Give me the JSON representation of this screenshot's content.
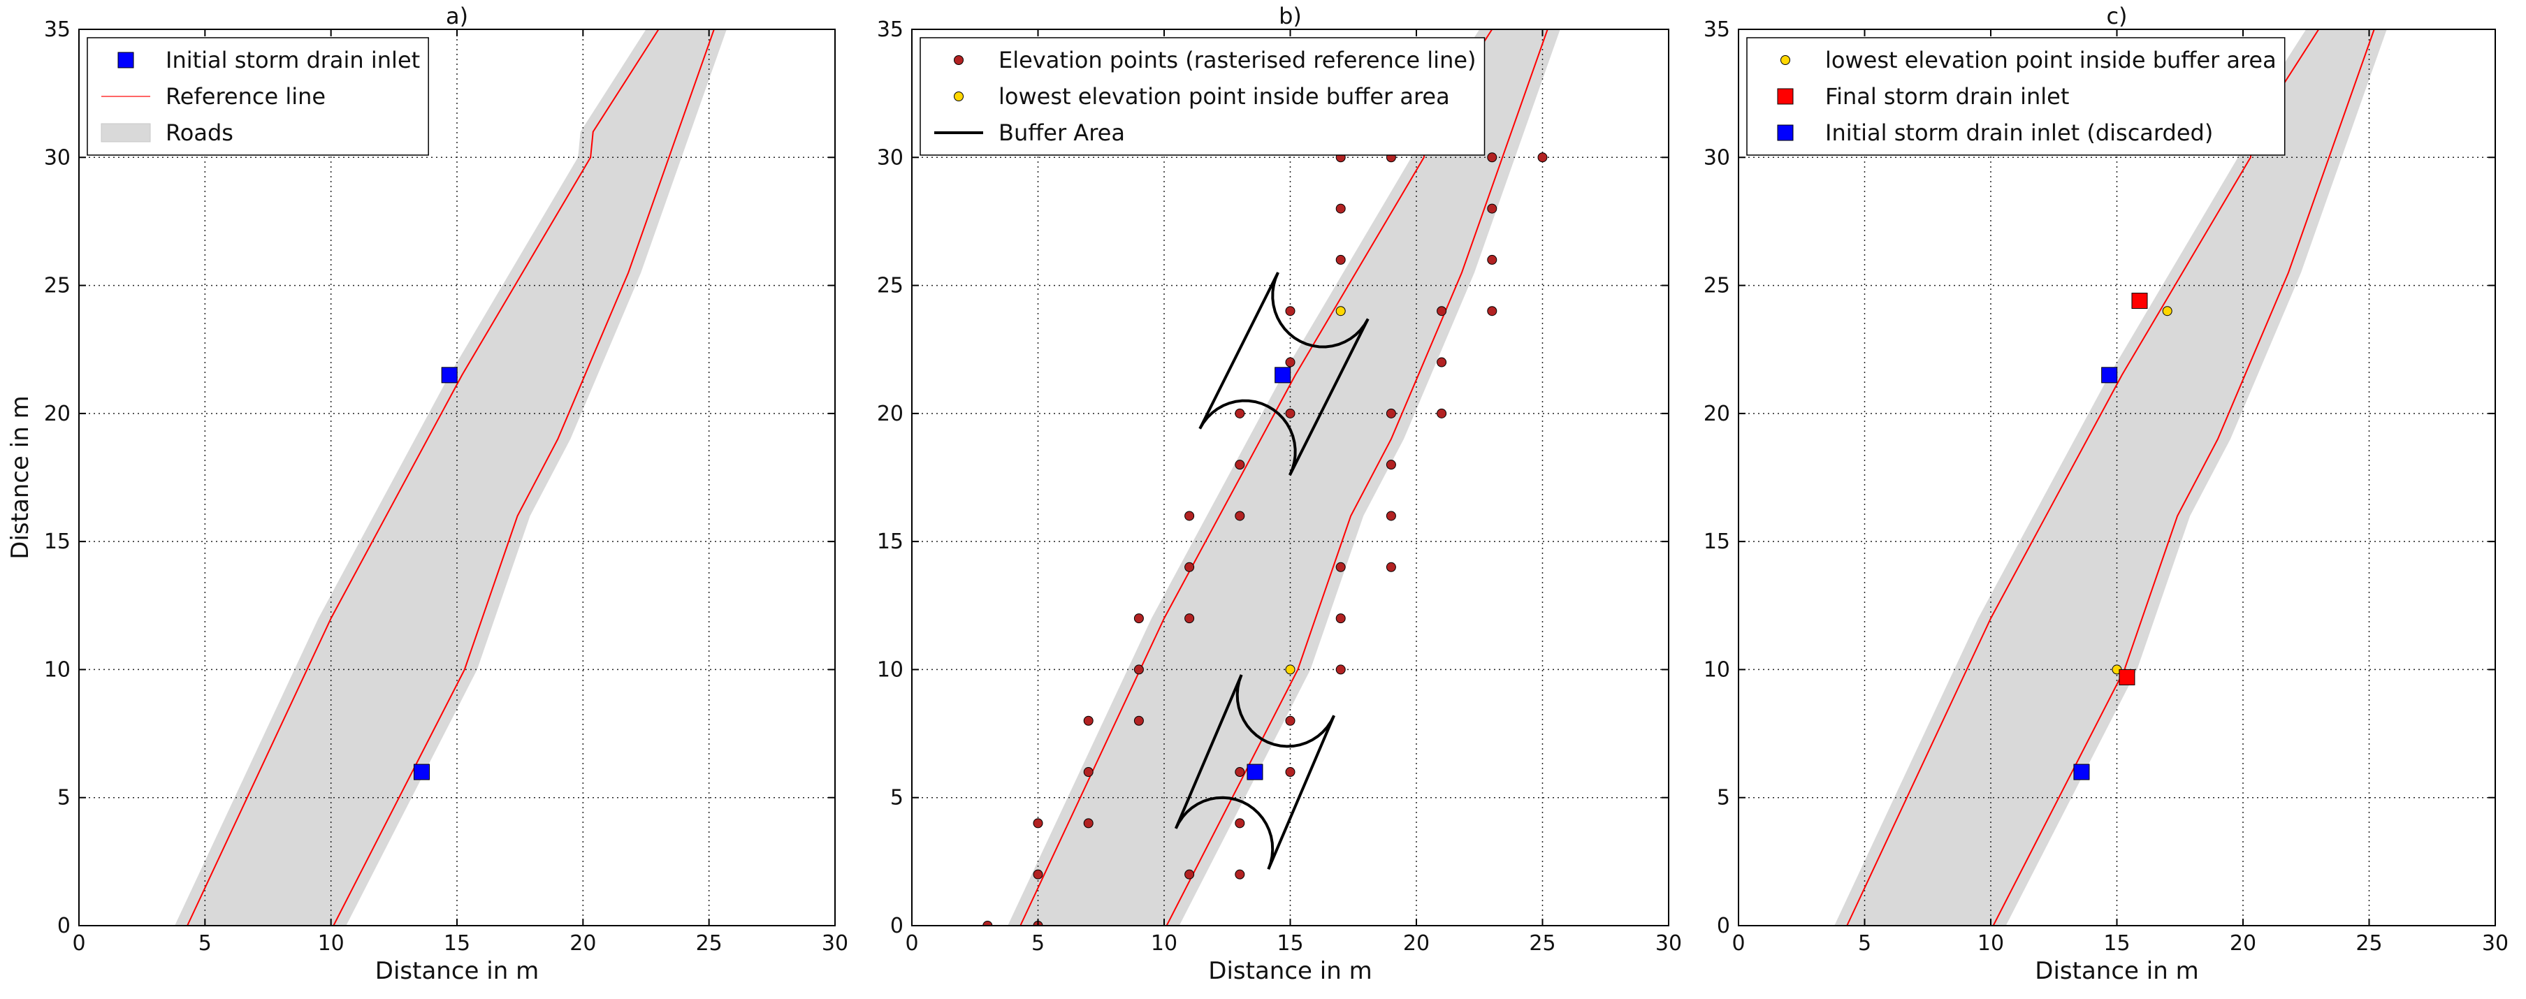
{
  "figure": {
    "panels": [
      "a)",
      "b)",
      "c)"
    ]
  },
  "chart_data": [
    {
      "type": "scatter",
      "title": "a)",
      "xlabel": "Distance in m",
      "ylabel": "Distance in m",
      "xlim": [
        0,
        30
      ],
      "ylim": [
        0,
        35
      ],
      "xticks": [
        0,
        5,
        10,
        15,
        20,
        25,
        30
      ],
      "yticks": [
        0,
        5,
        10,
        15,
        20,
        25,
        30,
        35
      ],
      "grid": true,
      "legend_position": "top-left",
      "road": {
        "name": "Roads",
        "color": "#d9d9d9",
        "left_edge": [
          [
            3.8,
            0
          ],
          [
            9.5,
            12
          ],
          [
            14.7,
            21.5
          ],
          [
            19.8,
            30
          ],
          [
            19.9,
            31
          ],
          [
            22.5,
            35
          ]
        ],
        "right_edge": [
          [
            10.6,
            0
          ],
          [
            15.8,
            10
          ],
          [
            17.9,
            16
          ],
          [
            19.5,
            19
          ],
          [
            22.3,
            25.5
          ],
          [
            25.7,
            35
          ]
        ]
      },
      "reference_lines": {
        "name": "Reference line",
        "color": "#ff0000",
        "left": [
          [
            4.3,
            0
          ],
          [
            10.0,
            12
          ],
          [
            15.2,
            21.5
          ],
          [
            20.3,
            30
          ],
          [
            20.4,
            31
          ],
          [
            23.0,
            35
          ]
        ],
        "right": [
          [
            10.1,
            0
          ],
          [
            15.3,
            10
          ],
          [
            17.4,
            16
          ],
          [
            19.0,
            19
          ],
          [
            21.8,
            25.5
          ],
          [
            25.2,
            35
          ]
        ]
      },
      "series": [
        {
          "name": "Initial storm drain inlet",
          "marker": "square",
          "color": "#0000ff",
          "points": [
            [
              14.7,
              21.5
            ],
            [
              13.6,
              6.0
            ]
          ]
        }
      ],
      "legend": [
        {
          "label": "Initial storm drain inlet",
          "kind": "square",
          "color": "#0000ff"
        },
        {
          "label": "Reference line",
          "kind": "line",
          "color": "#ff6666"
        },
        {
          "label": "Roads",
          "kind": "patch",
          "color": "#d9d9d9"
        }
      ]
    },
    {
      "type": "scatter",
      "title": "b)",
      "xlabel": "Distance in m",
      "ylabel": "",
      "xlim": [
        0,
        30
      ],
      "ylim": [
        0,
        35
      ],
      "xticks": [
        0,
        5,
        10,
        15,
        20,
        25,
        30
      ],
      "yticks": [
        0,
        5,
        10,
        15,
        20,
        25,
        30,
        35
      ],
      "grid": true,
      "legend_position": "top-left",
      "road": {
        "name": "Roads",
        "color": "#d9d9d9",
        "left_edge": [
          [
            3.8,
            0
          ],
          [
            9.5,
            12
          ],
          [
            14.7,
            21.5
          ],
          [
            19.8,
            30
          ],
          [
            19.9,
            31
          ],
          [
            22.5,
            35
          ]
        ],
        "right_edge": [
          [
            10.6,
            0
          ],
          [
            15.8,
            10
          ],
          [
            17.9,
            16
          ],
          [
            19.5,
            19
          ],
          [
            22.3,
            25.5
          ],
          [
            25.7,
            35
          ]
        ]
      },
      "reference_lines": {
        "name": "Reference line",
        "color": "#ff0000",
        "left": [
          [
            4.3,
            0
          ],
          [
            10.0,
            12
          ],
          [
            15.2,
            21.5
          ],
          [
            20.3,
            30
          ],
          [
            20.4,
            31
          ],
          [
            23.0,
            35
          ]
        ],
        "right": [
          [
            10.1,
            0
          ],
          [
            15.3,
            10
          ],
          [
            17.4,
            16
          ],
          [
            19.0,
            19
          ],
          [
            21.8,
            25.5
          ],
          [
            25.2,
            35
          ]
        ]
      },
      "buffers": [
        {
          "name": "Buffer Area",
          "center": [
            14.7,
            21.5
          ],
          "radius": 2.0,
          "segment": [
            [
              13.2,
              18.5
            ],
            [
              16.3,
              24.6
            ]
          ]
        },
        {
          "name": "Buffer Area",
          "center": [
            13.6,
            6.0
          ],
          "radius": 2.0,
          "segment": [
            [
              12.3,
              3.0
            ],
            [
              14.9,
              9.0
            ]
          ]
        }
      ],
      "series": [
        {
          "name": "Elevation points (rasterised reference line)",
          "marker": "circle",
          "color": "#b22222",
          "points": [
            [
              3,
              0
            ],
            [
              5,
              0
            ],
            [
              5,
              2
            ],
            [
              5,
              4
            ],
            [
              7,
              4
            ],
            [
              7,
              6
            ],
            [
              7,
              8
            ],
            [
              9,
              8
            ],
            [
              9,
              10
            ],
            [
              9,
              12
            ],
            [
              11,
              2
            ],
            [
              11,
              12
            ],
            [
              11,
              14
            ],
            [
              11,
              16
            ],
            [
              13,
              2
            ],
            [
              13,
              4
            ],
            [
              13,
              6
            ],
            [
              13,
              16
            ],
            [
              13,
              18
            ],
            [
              13,
              20
            ],
            [
              15,
              6
            ],
            [
              15,
              8
            ],
            [
              15,
              20
            ],
            [
              15,
              22
            ],
            [
              15,
              24
            ],
            [
              17,
              10
            ],
            [
              17,
              12
            ],
            [
              17,
              14
            ],
            [
              17,
              26
            ],
            [
              17,
              28
            ],
            [
              17,
              30
            ],
            [
              19,
              14
            ],
            [
              19,
              16
            ],
            [
              19,
              18
            ],
            [
              19,
              20
            ],
            [
              19,
              30
            ],
            [
              21,
              20
            ],
            [
              21,
              22
            ],
            [
              21,
              24
            ],
            [
              23,
              24
            ],
            [
              23,
              26
            ],
            [
              23,
              28
            ],
            [
              23,
              30
            ],
            [
              25,
              30
            ]
          ]
        },
        {
          "name": "lowest elevation point inside buffer area",
          "marker": "circle",
          "color": "#ffd700",
          "points": [
            [
              17,
              24
            ],
            [
              15,
              10
            ]
          ]
        },
        {
          "name": "Initial storm drain inlet",
          "marker": "square",
          "color": "#0000ff",
          "points": [
            [
              14.7,
              21.5
            ],
            [
              13.6,
              6.0
            ]
          ]
        }
      ],
      "legend": [
        {
          "label": "Elevation points (rasterised reference line)",
          "kind": "dot",
          "color": "#b22222"
        },
        {
          "label": "lowest elevation point inside buffer area",
          "kind": "dot",
          "color": "#ffd700"
        },
        {
          "label": "Buffer Area",
          "kind": "line",
          "color": "#000000"
        }
      ]
    },
    {
      "type": "scatter",
      "title": "c)",
      "xlabel": "Distance in m",
      "ylabel": "",
      "xlim": [
        0,
        30
      ],
      "ylim": [
        0,
        35
      ],
      "xticks": [
        0,
        5,
        10,
        15,
        20,
        25,
        30
      ],
      "yticks": [
        0,
        5,
        10,
        15,
        20,
        25,
        30,
        35
      ],
      "grid": true,
      "legend_position": "top-left",
      "road": {
        "name": "Roads",
        "color": "#d9d9d9",
        "left_edge": [
          [
            3.8,
            0
          ],
          [
            9.5,
            12
          ],
          [
            14.7,
            21.5
          ],
          [
            19.8,
            30
          ],
          [
            19.9,
            31
          ],
          [
            22.5,
            35
          ]
        ],
        "right_edge": [
          [
            10.6,
            0
          ],
          [
            15.8,
            10
          ],
          [
            17.9,
            16
          ],
          [
            19.5,
            19
          ],
          [
            22.3,
            25.5
          ],
          [
            25.7,
            35
          ]
        ]
      },
      "reference_lines": {
        "name": "Reference line",
        "color": "#ff0000",
        "left": [
          [
            4.3,
            0
          ],
          [
            10.0,
            12
          ],
          [
            15.2,
            21.5
          ],
          [
            20.3,
            30
          ],
          [
            20.4,
            31
          ],
          [
            23.0,
            35
          ]
        ],
        "right": [
          [
            10.1,
            0
          ],
          [
            15.3,
            10
          ],
          [
            17.4,
            16
          ],
          [
            19.0,
            19
          ],
          [
            21.8,
            25.5
          ],
          [
            25.2,
            35
          ]
        ]
      },
      "series": [
        {
          "name": "lowest elevation point inside buffer area",
          "marker": "circle",
          "color": "#ffd700",
          "points": [
            [
              17,
              24
            ],
            [
              15,
              10
            ]
          ]
        },
        {
          "name": "Final storm drain inlet",
          "marker": "square",
          "color": "#ff0000",
          "points": [
            [
              15.9,
              24.4
            ],
            [
              15.4,
              9.7
            ]
          ]
        },
        {
          "name": "Initial storm drain inlet (discarded)",
          "marker": "square",
          "color": "#0000ff",
          "points": [
            [
              14.7,
              21.5
            ],
            [
              13.6,
              6.0
            ]
          ]
        }
      ],
      "legend": [
        {
          "label": "lowest elevation point inside buffer area",
          "kind": "dot",
          "color": "#ffd700"
        },
        {
          "label": "Final storm drain inlet",
          "kind": "square",
          "color": "#ff0000"
        },
        {
          "label": "Initial storm drain inlet (discarded)",
          "kind": "square",
          "color": "#0000ff"
        }
      ]
    }
  ]
}
